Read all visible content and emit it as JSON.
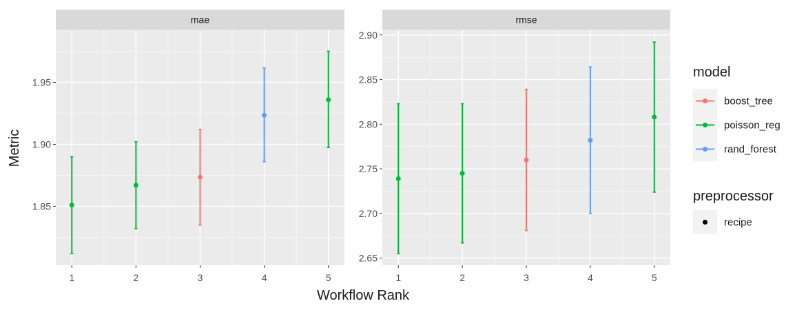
{
  "chart_data": {
    "type": "scatter",
    "xlabel": "Workflow Rank",
    "ylabel": "Metric",
    "x_ticks": [
      "1",
      "2",
      "3",
      "4",
      "5"
    ],
    "xlim": [
      0.75,
      5.25
    ],
    "facets": [
      {
        "strip": "mae",
        "ylim": [
          1.8025,
          1.9925
        ],
        "y_ticks": [
          1.85,
          1.9,
          1.95
        ],
        "y_tick_labels": [
          "1.85",
          "1.90",
          "1.95"
        ],
        "points": [
          {
            "rank": 1,
            "model": "poisson_reg",
            "mean": 1.851,
            "lower": 1.812,
            "upper": 1.89
          },
          {
            "rank": 2,
            "model": "poisson_reg",
            "mean": 1.867,
            "lower": 1.832,
            "upper": 1.902
          },
          {
            "rank": 3,
            "model": "boost_tree",
            "mean": 1.8735,
            "lower": 1.835,
            "upper": 1.912
          },
          {
            "rank": 4,
            "model": "rand_forest",
            "mean": 1.9235,
            "lower": 1.886,
            "upper": 1.9615
          },
          {
            "rank": 5,
            "model": "poisson_reg",
            "mean": 1.936,
            "lower": 1.8975,
            "upper": 1.975
          }
        ]
      },
      {
        "strip": "rmse",
        "ylim": [
          2.642,
          2.906
        ],
        "y_ticks": [
          2.65,
          2.7,
          2.75,
          2.8,
          2.85,
          2.9
        ],
        "y_tick_labels": [
          "2.65",
          "2.70",
          "2.75",
          "2.80",
          "2.85",
          "2.90"
        ],
        "points": [
          {
            "rank": 1,
            "model": "poisson_reg",
            "mean": 2.739,
            "lower": 2.655,
            "upper": 2.823
          },
          {
            "rank": 2,
            "model": "poisson_reg",
            "mean": 2.745,
            "lower": 2.667,
            "upper": 2.823
          },
          {
            "rank": 3,
            "model": "boost_tree",
            "mean": 2.76,
            "lower": 2.681,
            "upper": 2.839
          },
          {
            "rank": 4,
            "model": "rand_forest",
            "mean": 2.782,
            "lower": 2.7,
            "upper": 2.864
          },
          {
            "rank": 5,
            "model": "poisson_reg",
            "mean": 2.808,
            "lower": 2.724,
            "upper": 2.892
          }
        ]
      }
    ],
    "legend": {
      "placement": "right",
      "model_title": "model",
      "models": [
        {
          "name": "boost_tree",
          "color": "#F8766D"
        },
        {
          "name": "poisson_reg",
          "color": "#00BA38"
        },
        {
          "name": "rand_forest",
          "color": "#619CFF"
        }
      ],
      "preprocessor_title": "preprocessor",
      "preprocessors": [
        {
          "name": "recipe",
          "color": "#000000"
        }
      ]
    },
    "grid": true
  },
  "colors": {
    "panel_bg": "#EBEBEB",
    "strip_bg": "#D9D9D9",
    "grid_major": "#FFFFFF",
    "text": "#1A1A1A",
    "axis_text": "#4D4D4D"
  }
}
